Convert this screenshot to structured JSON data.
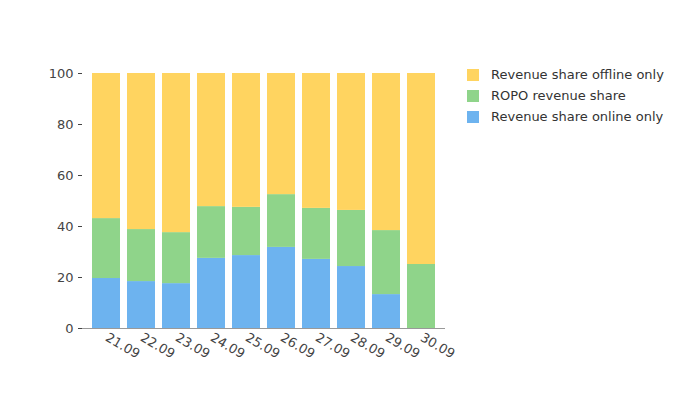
{
  "chart_data": {
    "type": "bar",
    "stacked": true,
    "grid": false,
    "legend": "right",
    "categories": [
      "21.09",
      "22.09",
      "23.09",
      "24.09",
      "25.09",
      "26.09",
      "27.09",
      "28.09",
      "29.09",
      "30.09"
    ],
    "series": [
      {
        "name": "Revenue share online only",
        "color": "#6db3ef",
        "values": [
          19.6,
          18.4,
          17.6,
          27.5,
          28.6,
          31.8,
          27.1,
          24.3,
          13.3,
          0
        ]
      },
      {
        "name": "ROPO revenue share",
        "color": "#8fd48a",
        "values": [
          23.5,
          20.4,
          20.0,
          20.3,
          18.9,
          20.7,
          20.0,
          22.0,
          25.1,
          25.1
        ]
      },
      {
        "name": "Revenue share offline only",
        "color": "#ffd460",
        "values": [
          56.9,
          61.2,
          62.4,
          52.2,
          52.5,
          47.5,
          52.9,
          53.7,
          61.6,
          74.9
        ]
      }
    ],
    "ylim": [
      0,
      100
    ],
    "yticks": [
      0,
      20,
      40,
      60,
      80,
      100
    ]
  }
}
